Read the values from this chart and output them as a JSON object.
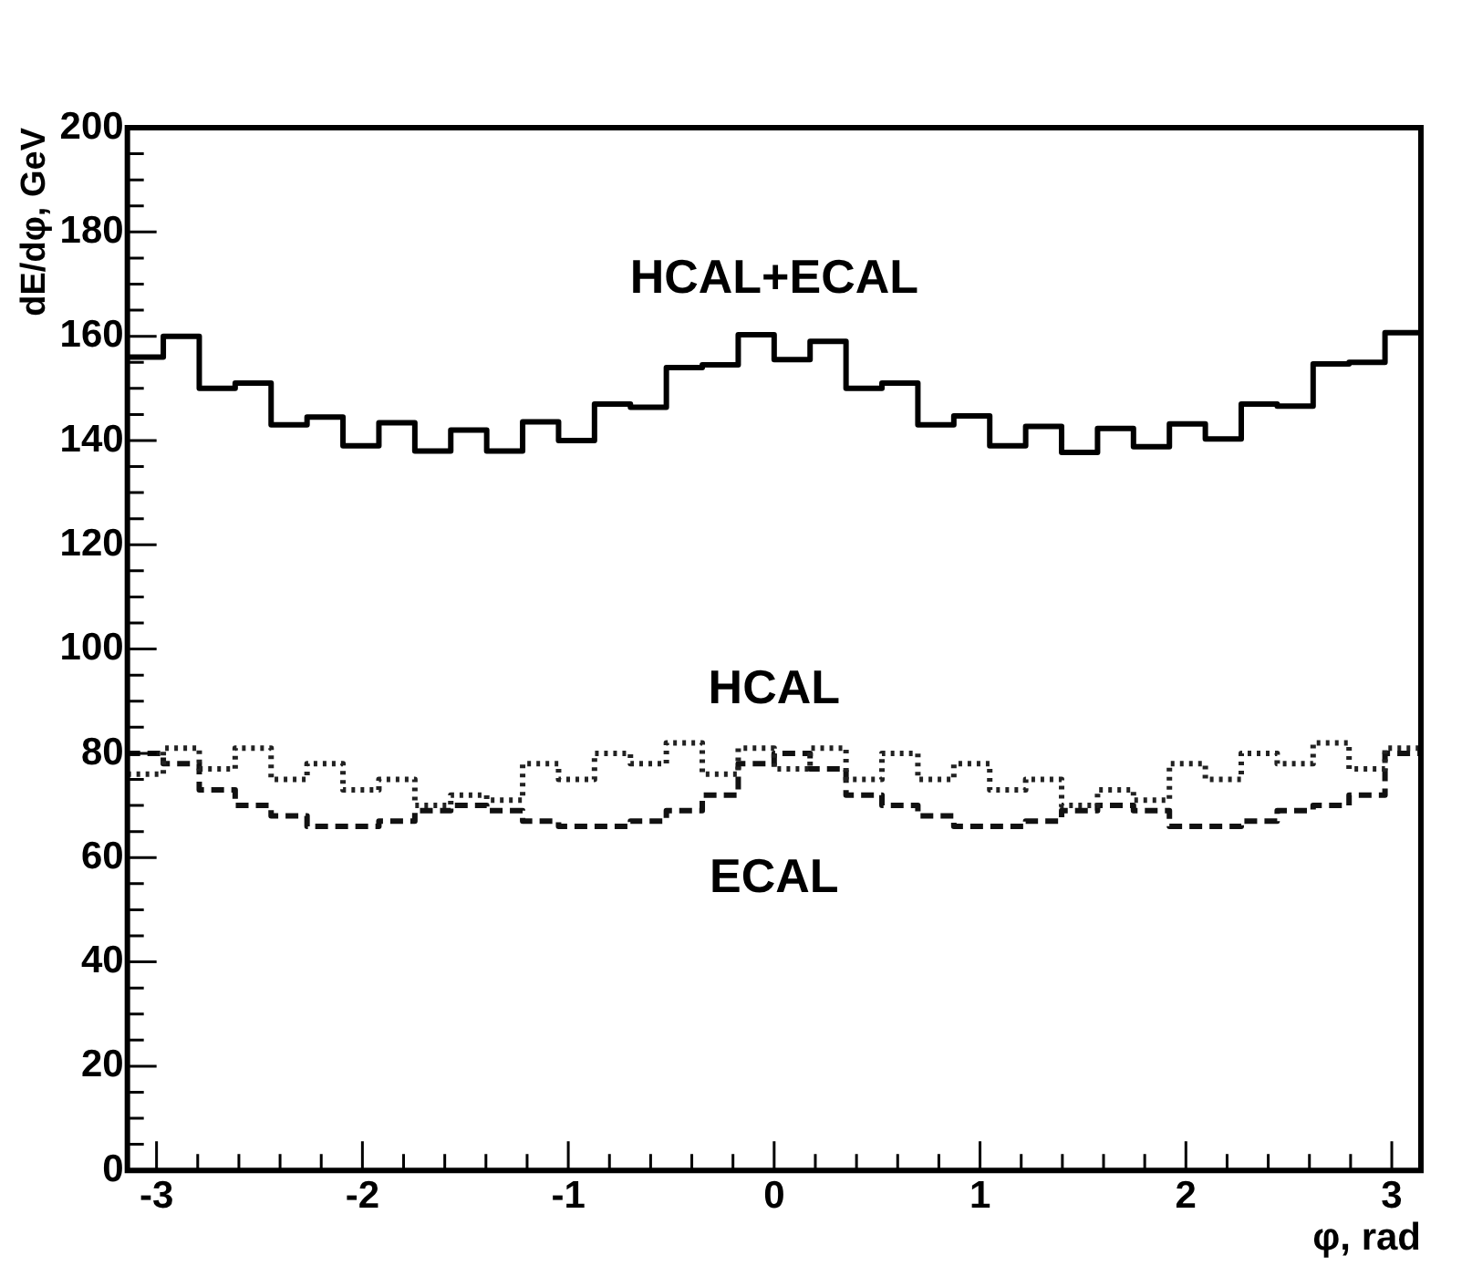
{
  "chart_data": {
    "type": "histogram",
    "xlabel": "φ, rad",
    "ylabel": "dE/dφ, GeV",
    "bins": [
      -3.1416,
      -2.9671,
      -2.7925,
      -2.618,
      -2.4435,
      -2.2689,
      -2.0944,
      -1.9199,
      -1.7453,
      -1.5708,
      -1.3963,
      -1.2217,
      -1.0472,
      -0.8727,
      -0.6981,
      -0.5236,
      -0.3491,
      -0.1745,
      0,
      0.1745,
      0.3491,
      0.5236,
      0.6981,
      0.8727,
      1.0472,
      1.2217,
      1.3963,
      1.5708,
      1.7453,
      1.9199,
      2.0944,
      2.2689,
      2.4435,
      2.618,
      2.7925,
      2.9671,
      3.1416
    ],
    "series": [
      {
        "name": "HCAL+ECAL",
        "color": "#000000",
        "line_style": "solid",
        "values": [
          156,
          160,
          150,
          151,
          143,
          144.5,
          139,
          143.4,
          138,
          142,
          138,
          143.6,
          140,
          147,
          146.4,
          154,
          154.5,
          160.3,
          155.5,
          159,
          150,
          151,
          143,
          144.7,
          139,
          142.7,
          137.7,
          142.3,
          138.8,
          143.2,
          140.3,
          147,
          146.6,
          154.7,
          155,
          160.7
        ]
      },
      {
        "name": "HCAL",
        "color": "#222222",
        "line_style": "dotted",
        "values": [
          76,
          81,
          77,
          81,
          75,
          78,
          73,
          75,
          70,
          72,
          71,
          78,
          75,
          80,
          78,
          82,
          76,
          81,
          77,
          81,
          75,
          80,
          75,
          78,
          73,
          75,
          70,
          73,
          71,
          78,
          75,
          80,
          78,
          82,
          77,
          81
        ]
      },
      {
        "name": "ECAL",
        "color": "#111111",
        "line_style": "dashed",
        "values": [
          80,
          78,
          73,
          70,
          68,
          66,
          66,
          67,
          69,
          70,
          69,
          67,
          66,
          66,
          67,
          69,
          72,
          78,
          80,
          77,
          72,
          70,
          68,
          66,
          66,
          67,
          69,
          70,
          69,
          66,
          66,
          67,
          69,
          70,
          72,
          80
        ]
      }
    ],
    "xlim": [
      -3.1416,
      3.1416
    ],
    "xticks": [
      -3,
      {
        "value": -2.8,
        "label": null
      },
      {
        "value": -2.6,
        "label": null
      },
      {
        "value": -2.4,
        "label": null
      },
      {
        "value": -2.2,
        "label": null
      },
      -2,
      {
        "value": -1.8,
        "label": null
      },
      {
        "value": -1.6,
        "label": null
      },
      {
        "value": -1.4,
        "label": null
      },
      {
        "value": -1.2,
        "label": null
      },
      -1,
      {
        "value": -0.8,
        "label": null
      },
      {
        "value": -0.6,
        "label": null
      },
      {
        "value": -0.4,
        "label": null
      },
      {
        "value": -0.2,
        "label": null
      },
      0,
      {
        "value": 0.2,
        "label": null
      },
      {
        "value": 0.4,
        "label": null
      },
      {
        "value": 0.6,
        "label": null
      },
      {
        "value": 0.8,
        "label": null
      },
      1,
      {
        "value": 1.2,
        "label": null
      },
      {
        "value": 1.4,
        "label": null
      },
      {
        "value": 1.6,
        "label": null
      },
      {
        "value": 1.8,
        "label": null
      },
      2,
      {
        "value": 2.2,
        "label": null
      },
      {
        "value": 2.4,
        "label": null
      },
      {
        "value": 2.6,
        "label": null
      },
      {
        "value": 2.8,
        "label": null
      },
      3
    ],
    "ylim": [
      0,
      200
    ],
    "yticks": [
      0,
      {
        "value": 5,
        "label": null
      },
      {
        "value": 10,
        "label": null
      },
      {
        "value": 15,
        "label": null
      },
      20,
      {
        "value": 25,
        "label": null
      },
      {
        "value": 30,
        "label": null
      },
      {
        "value": 35,
        "label": null
      },
      40,
      {
        "value": 45,
        "label": null
      },
      {
        "value": 50,
        "label": null
      },
      {
        "value": 55,
        "label": null
      },
      60,
      {
        "value": 65,
        "label": null
      },
      {
        "value": 70,
        "label": null
      },
      {
        "value": 75,
        "label": null
      },
      80,
      {
        "value": 85,
        "label": null
      },
      {
        "value": 90,
        "label": null
      },
      {
        "value": 95,
        "label": null
      },
      100,
      {
        "value": 105,
        "label": null
      },
      {
        "value": 110,
        "label": null
      },
      {
        "value": 115,
        "label": null
      },
      120,
      {
        "value": 125,
        "label": null
      },
      {
        "value": 130,
        "label": null
      },
      {
        "value": 135,
        "label": null
      },
      140,
      {
        "value": 145,
        "label": null
      },
      {
        "value": 150,
        "label": null
      },
      {
        "value": 155,
        "label": null
      },
      160,
      {
        "value": 165,
        "label": null
      },
      {
        "value": 170,
        "label": null
      },
      {
        "value": 175,
        "label": null
      },
      180,
      {
        "value": 185,
        "label": null
      },
      {
        "value": 190,
        "label": null
      },
      {
        "value": 195,
        "label": null
      },
      200
    ],
    "grid": false,
    "legend": false,
    "marker": "none"
  }
}
